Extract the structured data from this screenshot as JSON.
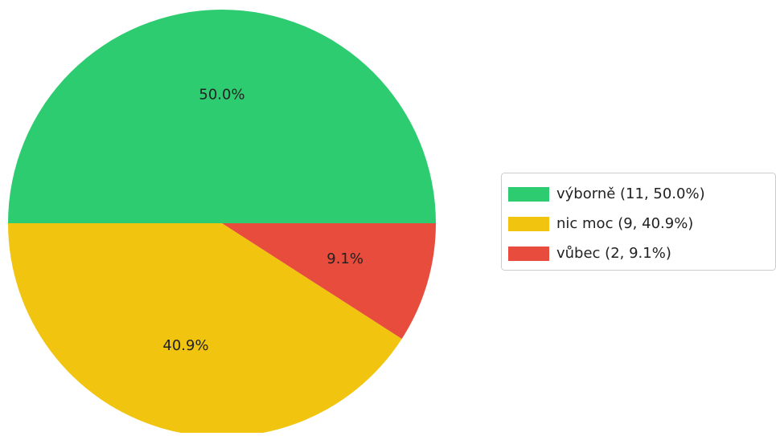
{
  "chart_data": {
    "type": "pie",
    "categories": [
      "výborně (11, 50.0%)",
      "nic moc (9, 40.9%)",
      "vůbec (2, 9.1%)"
    ],
    "values": [
      50.0,
      40.9,
      9.1
    ],
    "value_labels": [
      "50.0%",
      "40.9%",
      "9.1%"
    ],
    "colors": [
      "#2ecc71",
      "#f1c40f",
      "#e74c3c"
    ],
    "legend": "right"
  }
}
